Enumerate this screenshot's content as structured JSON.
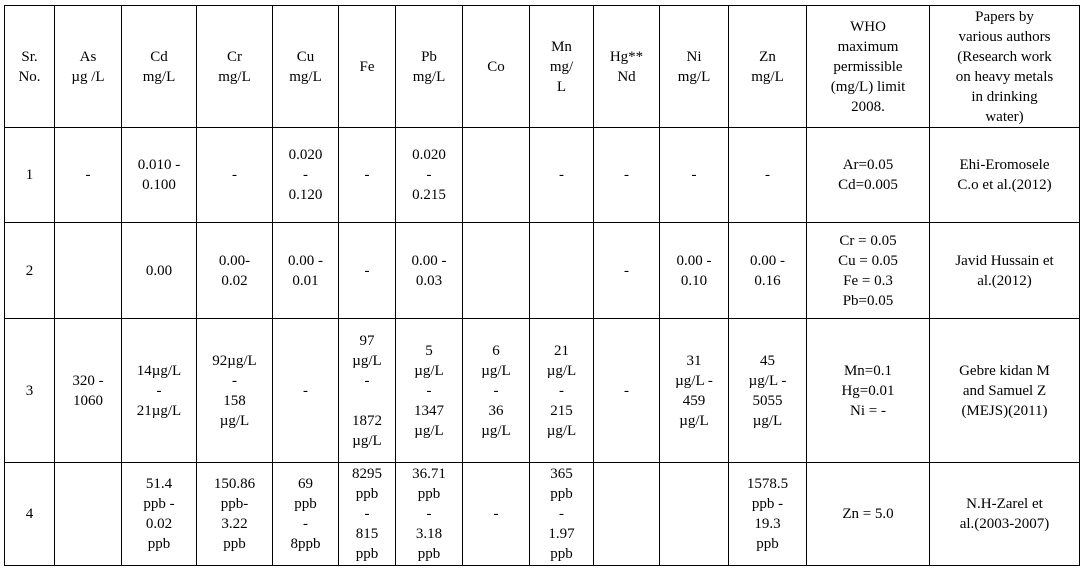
{
  "table": {
    "headers": [
      "Sr.\nNo.",
      "As\nµg /L",
      "Cd\nmg/L",
      "Cr\nmg/L",
      "Cu\nmg/L",
      "Fe",
      "Pb\nmg/L",
      "Co",
      "Mn\nmg/\nL",
      "Hg**\nNd",
      "Ni\nmg/L",
      "Zn\nmg/L",
      "WHO\nmaximum\npermissible\n(mg/L) limit\n2008.",
      "Papers by\nvarious authors\n(Research work\non heavy metals\nin drinking\nwater)"
    ],
    "rows": [
      [
        "1",
        "-",
        "0.010 -\n0.100",
        "-",
        "0.020\n-\n0.120",
        "-",
        "0.020\n-\n0.215",
        "",
        "-",
        "-",
        "-",
        "-",
        "Ar=0.05\nCd=0.005",
        "Ehi-Eromosele\nC.o et al.(2012)"
      ],
      [
        "2",
        "",
        "0.00",
        "0.00-\n0.02",
        "0.00 -\n0.01",
        "-",
        "0.00 -\n0.03",
        "",
        "",
        "-",
        "0.00 -\n0.10",
        "0.00 -\n0.16",
        "Cr = 0.05\nCu = 0.05\nFe = 0.3\nPb=0.05",
        "Javid Hussain et\nal.(2012)"
      ],
      [
        "3",
        "320 -\n1060",
        "14µg/L\n-\n21µg/L",
        "92µg/L\n-\n158\nµg/L",
        "-",
        "97\nµg/L\n-\n\n1872\nµg/L",
        "5\nµg/L\n-\n1347\nµg/L",
        "6\nµg/L\n-\n36\nµg/L",
        "21\nµg/L\n-\n215\nµg/L",
        "-",
        "31\nµg/L -\n459\nµg/L",
        "45\nµg/L -\n5055\nµg/L",
        "Mn=0.1\nHg=0.01\nNi = -",
        "Gebre kidan M\nand Samuel Z\n(MEJS)(2011)"
      ],
      [
        "4",
        "",
        "51.4\nppb -\n0.02\nppb",
        "150.86\nppb-\n3.22\nppb",
        "69\nppb\n-\n8ppb",
        "8295\nppb\n-\n815\nppb",
        "36.71\nppb\n-\n3.18\nppb",
        "-",
        "365\nppb\n-\n1.97\nppb",
        "",
        "",
        "1578.5\nppb -\n19.3\nppb",
        "Zn = 5.0",
        "N.H-Zarel et\nal.(2003-2007)"
      ]
    ]
  }
}
